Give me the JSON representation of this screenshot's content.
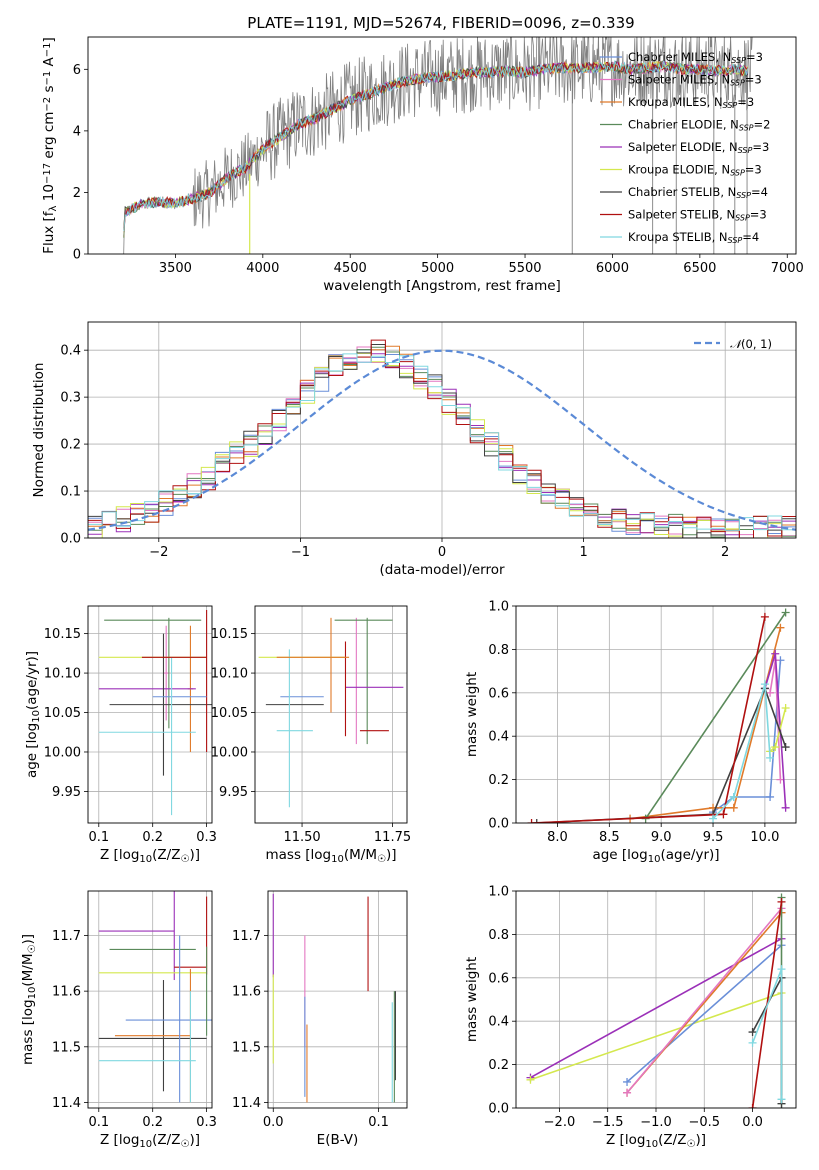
{
  "title": "PLATE=1191, MJD=52674, FIBERID=0096, z=0.339",
  "colors": {
    "Chabrier MILES": "#6a8fd8",
    "Salpeter MILES": "#e377c2",
    "Kroupa MILES": "#e07a2a",
    "Chabrier ELODIE": "#5a8a5a",
    "Salpeter ELODIE": "#9b30b8",
    "Kroupa ELODIE": "#d4e84e",
    "Chabrier STELIB": "#404040",
    "Salpeter STELIB": "#b01010",
    "Kroupa STELIB": "#80d8e0",
    "data": "#808080",
    "gauss": "#5b8ad6"
  },
  "legend_main": [
    "Chabrier MILES, N_SSP=3",
    "Salpeter MILES, N_SSP=3",
    "Kroupa MILES, N_SSP=3",
    "Chabrier ELODIE, N_SSP=2",
    "Salpeter ELODIE, N_SSP=3",
    "Kroupa ELODIE, N_SSP=3",
    "Chabrier STELIB, N_SSP=4",
    "Salpeter STELIB, N_SSP=3",
    "Kroupa STELIB, N_SSP=4"
  ],
  "chart_data": [
    {
      "id": "spectrum",
      "type": "line",
      "title": "PLATE=1191, MJD=52674, FIBERID=0096, z=0.339",
      "xlabel": "wavelength [Angstrom, rest frame]",
      "ylabel": "Flux [f_λ 10^-17 erg cm^-2 s^-1 A^-1]",
      "xlim": [
        3000,
        7050
      ],
      "ylim": [
        0,
        7.05
      ],
      "xticks": [
        3500,
        4000,
        4500,
        5000,
        5500,
        6000,
        6500,
        7000
      ],
      "yticks": [
        0,
        2,
        4,
        6
      ],
      "model_continuum": [
        [
          3200,
          0
        ],
        [
          3210,
          1.35
        ],
        [
          3300,
          1.6
        ],
        [
          3400,
          1.7
        ],
        [
          3500,
          1.65
        ],
        [
          3600,
          1.8
        ],
        [
          3700,
          2.0
        ],
        [
          3800,
          2.5
        ],
        [
          3900,
          2.8
        ],
        [
          3950,
          3.1
        ],
        [
          4000,
          3.4
        ],
        [
          4100,
          3.8
        ],
        [
          4200,
          4.2
        ],
        [
          4300,
          4.4
        ],
        [
          4400,
          4.7
        ],
        [
          4500,
          5.0
        ],
        [
          4600,
          5.2
        ],
        [
          4700,
          5.4
        ],
        [
          4800,
          5.6
        ],
        [
          4900,
          5.7
        ],
        [
          5000,
          5.75
        ],
        [
          5100,
          5.8
        ],
        [
          5200,
          5.9
        ],
        [
          5300,
          5.9
        ],
        [
          5400,
          5.95
        ],
        [
          5500,
          5.9
        ],
        [
          5600,
          6.0
        ],
        [
          5700,
          6.05
        ],
        [
          5800,
          6.05
        ],
        [
          5900,
          6.05
        ],
        [
          6000,
          6.1
        ],
        [
          6100,
          6.0
        ],
        [
          6200,
          6.05
        ],
        [
          6300,
          6.1
        ],
        [
          6400,
          6.0
        ],
        [
          6500,
          6.0
        ],
        [
          6600,
          5.95
        ],
        [
          6700,
          6.0
        ],
        [
          6800,
          5.9
        ]
      ],
      "grid": false,
      "legend": "top-right"
    },
    {
      "id": "residuals",
      "type": "line",
      "xlabel": "(data-model)/error",
      "ylabel": "Normed distribution",
      "xlim": [
        -2.5,
        2.5
      ],
      "ylim": [
        0,
        0.46
      ],
      "xticks": [
        -2,
        -1,
        0,
        1,
        2
      ],
      "yticks": [
        0.0,
        0.1,
        0.2,
        0.3,
        0.4
      ],
      "bin_width": 0.1,
      "bin_start": -2.5,
      "hist_envelope": [
        0.025,
        0.028,
        0.03,
        0.035,
        0.04,
        0.045,
        0.05,
        0.055,
        0.06,
        0.068,
        0.075,
        0.085,
        0.095,
        0.1,
        0.11,
        0.12,
        0.13,
        0.14,
        0.155,
        0.165,
        0.18,
        0.19,
        0.2,
        0.21,
        0.22,
        0.235,
        0.25,
        0.27,
        0.285,
        0.3,
        0.31,
        0.325,
        0.34,
        0.355,
        0.365,
        0.375,
        0.38,
        0.385,
        0.39,
        0.392,
        0.395,
        0.39,
        0.385,
        0.375,
        0.365,
        0.355,
        0.345,
        0.33,
        0.32,
        0.305,
        0.29,
        0.275,
        0.26,
        0.245,
        0.23,
        0.215,
        0.2,
        0.185,
        0.17,
        0.155,
        0.14,
        0.13,
        0.12,
        0.11,
        0.1,
        0.09,
        0.08,
        0.072,
        0.065,
        0.058,
        0.052,
        0.047,
        0.043,
        0.04,
        0.037,
        0.035,
        0.032,
        0.03,
        0.028,
        0.026,
        0.025,
        0.024,
        0.023,
        0.022,
        0.021,
        0.02,
        0.02,
        0.02,
        0.02,
        0.02,
        0.02,
        0.02,
        0.02,
        0.02,
        0.02,
        0.02,
        0.02,
        0.02,
        0.02,
        0.02
      ],
      "gaussian_legend": "N(0,1)",
      "grid": true,
      "legend": "top-right"
    },
    {
      "id": "age_vs_Z",
      "type": "scatter",
      "xlabel": "Z [log10(Z/Z☉)]",
      "ylabel": "age [log10(age/yr)]",
      "xlim": [
        0.08,
        0.31
      ],
      "ylim": [
        9.91,
        10.185
      ],
      "xticks": [
        0.1,
        0.2,
        0.3
      ],
      "yticks": [
        9.95,
        10.0,
        10.05,
        10.1,
        10.15
      ],
      "points": [
        {
          "s": "Salpeter MILES",
          "x": 0.225,
          "y": 10.1,
          "xerr": 0.005,
          "yerr": 0.06
        },
        {
          "s": "Kroupa MILES",
          "x": 0.27,
          "y": 10.08,
          "xerr": 0.005,
          "yerr": 0.08
        },
        {
          "s": "Chabrier ELODIE",
          "x": 0.23,
          "y": 10.1,
          "xerr": 0.0,
          "yerr": 0.07
        },
        {
          "s": "Salpeter ELODIE",
          "x": 0.19,
          "y": 10.08,
          "xerr": 0.09,
          "yerr": 0.0
        },
        {
          "s": "Kroupa ELODIE",
          "x": 0.2,
          "y": 10.12,
          "xerr": 0.1,
          "yerr": 0.0
        },
        {
          "s": "Chabrier STELIB",
          "x": 0.22,
          "y": 10.06,
          "xerr": 0.1,
          "yerr": 0.09
        },
        {
          "s": "Salpeter STELIB",
          "x": 0.3,
          "y": 10.09,
          "xerr": 0.0,
          "yerr": 0.09
        },
        {
          "s": "Kroupa STELIB",
          "x": 0.19,
          "y": 10.025,
          "xerr": 0.09,
          "yerr": 0.0
        },
        {
          "s": "Chabrier MILES",
          "x": 0.25,
          "y": 10.07,
          "xerr": 0.05,
          "yerr": 0.0
        },
        {
          "s": "Chabrier ELODIE",
          "x": 0.2,
          "y": 10.167,
          "xerr": 0.09,
          "yerr": 0.0
        },
        {
          "s": "Kroupa STELIB",
          "x": 0.235,
          "y": 10.02,
          "xerr": 0.0,
          "yerr": 0.1
        },
        {
          "s": "Salpeter STELIB",
          "x": 0.24,
          "y": 10.12,
          "xerr": 0.06,
          "yerr": 0.0
        }
      ]
    },
    {
      "id": "age_vs_mass",
      "type": "scatter",
      "xlabel": "mass [log10(M/M☉)]",
      "ylabel": "",
      "xlim": [
        11.37,
        11.79
      ],
      "ylim": [
        9.91,
        10.185
      ],
      "xticks": [
        11.5,
        11.75
      ],
      "yticks": [
        9.95,
        10.0,
        10.05,
        10.1,
        10.15
      ],
      "points": [
        {
          "s": "Chabrier MILES",
          "x": 11.5,
          "y": 10.07,
          "xerr": 0.06,
          "yerr": 0.0
        },
        {
          "s": "Salpeter MILES",
          "x": 11.65,
          "y": 10.09,
          "xerr": 0.0,
          "yerr": 0.08
        },
        {
          "s": "Kroupa MILES",
          "x": 11.58,
          "y": 10.11,
          "xerr": 0.0,
          "yerr": 0.06
        },
        {
          "s": "Chabrier ELODIE",
          "x": 11.67,
          "y": 10.167,
          "xerr": 0.08,
          "yerr": 0.0
        },
        {
          "s": "Chabrier ELODIE",
          "x": 11.68,
          "y": 10.09,
          "xerr": 0.0,
          "yerr": 0.08
        },
        {
          "s": "Salpeter ELODIE",
          "x": 11.7,
          "y": 10.082,
          "xerr": 0.08,
          "yerr": 0.0
        },
        {
          "s": "Kroupa ELODIE",
          "x": 11.5,
          "y": 10.12,
          "xerr": 0.12,
          "yerr": 0.0
        },
        {
          "s": "Chabrier STELIB",
          "x": 11.48,
          "y": 10.06,
          "xerr": 0.08,
          "yerr": 0.0
        },
        {
          "s": "Salpeter STELIB",
          "x": 11.7,
          "y": 10.027,
          "xerr": 0.04,
          "yerr": 0.0
        },
        {
          "s": "Salpeter STELIB",
          "x": 11.62,
          "y": 10.08,
          "xerr": 0.0,
          "yerr": 0.06
        },
        {
          "s": "Kroupa STELIB",
          "x": 11.48,
          "y": 10.027,
          "xerr": 0.05,
          "yerr": 0.0
        },
        {
          "s": "Kroupa STELIB",
          "x": 11.465,
          "y": 10.03,
          "xerr": 0.0,
          "yerr": 0.1
        },
        {
          "s": "Kroupa MILES",
          "x": 11.53,
          "y": 10.12,
          "xerr": 0.1,
          "yerr": 0.0
        }
      ]
    },
    {
      "id": "weight_vs_age",
      "type": "line",
      "xlabel": "age [log10(age/yr)]",
      "ylabel": "mass weight",
      "xlim": [
        7.6,
        10.3
      ],
      "ylim": [
        0,
        1.0
      ],
      "xticks": [
        8.0,
        8.5,
        9.0,
        9.5,
        10.0
      ],
      "yticks": [
        0.0,
        0.2,
        0.4,
        0.6,
        0.8,
        1.0
      ],
      "series": [
        {
          "s": "Chabrier MILES",
          "pts": [
            [
              9.5,
              0.05
            ],
            [
              9.7,
              0.12
            ],
            [
              10.05,
              0.12
            ],
            [
              10.15,
              0.75
            ]
          ]
        },
        {
          "s": "Salpeter MILES",
          "pts": [
            [
              10.05,
              0.6
            ],
            [
              10.1,
              0.75
            ],
            [
              10.15,
              0.2
            ]
          ]
        },
        {
          "s": "Kroupa MILES",
          "pts": [
            [
              8.7,
              0.02
            ],
            [
              9.5,
              0.07
            ],
            [
              9.7,
              0.07
            ],
            [
              10.15,
              0.9
            ]
          ]
        },
        {
          "s": "Chabrier ELODIE",
          "pts": [
            [
              8.85,
              0.02
            ],
            [
              10.2,
              0.97
            ]
          ]
        },
        {
          "s": "Salpeter ELODIE",
          "pts": [
            [
              10.0,
              0.62
            ],
            [
              10.1,
              0.78
            ],
            [
              10.2,
              0.07
            ]
          ]
        },
        {
          "s": "Kroupa ELODIE",
          "pts": [
            [
              10.05,
              0.33
            ],
            [
              10.1,
              0.35
            ],
            [
              10.2,
              0.53
            ]
          ]
        },
        {
          "s": "Chabrier STELIB",
          "pts": [
            [
              7.8,
              0.0
            ],
            [
              9.5,
              0.04
            ],
            [
              10.0,
              0.62
            ],
            [
              10.2,
              0.35
            ]
          ]
        },
        {
          "s": "Salpeter STELIB",
          "pts": [
            [
              7.75,
              0.0
            ],
            [
              9.6,
              0.04
            ],
            [
              10.0,
              0.95
            ]
          ]
        },
        {
          "s": "Kroupa STELIB",
          "pts": [
            [
              9.5,
              0.02
            ],
            [
              9.7,
              0.12
            ],
            [
              10.0,
              0.64
            ],
            [
              10.05,
              0.3
            ]
          ]
        }
      ]
    },
    {
      "id": "mass_vs_Z",
      "type": "scatter",
      "xlabel": "Z [log10(Z/Z☉)]",
      "ylabel": "mass [log10(M/M☉)]",
      "xlim": [
        0.08,
        0.31
      ],
      "ylim": [
        11.39,
        11.78
      ],
      "xticks": [
        0.1,
        0.2,
        0.3
      ],
      "yticks": [
        11.4,
        11.5,
        11.6,
        11.7
      ],
      "points": [
        {
          "s": "Salpeter ELODIE",
          "x": 0.17,
          "y": 11.708,
          "xerr": 0.07,
          "yerr": 0.0
        },
        {
          "s": "Salpeter ELODIE",
          "x": 0.24,
          "y": 11.7,
          "xerr": 0.0,
          "yerr": 0.08
        },
        {
          "s": "Chabrier ELODIE",
          "x": 0.2,
          "y": 11.675,
          "xerr": 0.08,
          "yerr": 0.0
        },
        {
          "s": "Kroupa ELODIE",
          "x": 0.2,
          "y": 11.633,
          "xerr": 0.1,
          "yerr": 0.0
        },
        {
          "s": "Salpeter STELIB",
          "x": 0.27,
          "y": 11.643,
          "xerr": 0.03,
          "yerr": 0.0
        },
        {
          "s": "Salpeter STELIB",
          "x": 0.3,
          "y": 11.7,
          "xerr": 0.0,
          "yerr": 0.07
        },
        {
          "s": "Chabrier STELIB",
          "x": 0.22,
          "y": 11.52,
          "xerr": 0.0,
          "yerr": 0.1
        },
        {
          "s": "Chabrier STELIB",
          "x": 0.2,
          "y": 11.515,
          "xerr": 0.1,
          "yerr": 0.0
        },
        {
          "s": "Kroupa MILES",
          "x": 0.2,
          "y": 11.52,
          "xerr": 0.07,
          "yerr": 0.0
        },
        {
          "s": "Kroupa MILES",
          "x": 0.27,
          "y": 11.52,
          "xerr": 0.0,
          "yerr": 0.12
        },
        {
          "s": "Chabrier MILES",
          "x": 0.23,
          "y": 11.548,
          "xerr": 0.08,
          "yerr": 0.0
        },
        {
          "s": "Chabrier MILES",
          "x": 0.25,
          "y": 11.55,
          "xerr": 0.0,
          "yerr": 0.15
        },
        {
          "s": "Kroupa STELIB",
          "x": 0.19,
          "y": 11.475,
          "xerr": 0.09,
          "yerr": 0.0
        },
        {
          "s": "Kroupa STELIB",
          "x": 0.27,
          "y": 11.5,
          "xerr": 0.0,
          "yerr": 0.1
        },
        {
          "s": "Chabrier ELODIE",
          "x": 0.3,
          "y": 11.6,
          "xerr": 0.0,
          "yerr": 0.08
        }
      ]
    },
    {
      "id": "mass_vs_ebv",
      "type": "scatter",
      "xlabel": "E(B-V)",
      "ylabel": "",
      "xlim": [
        -0.005,
        0.127
      ],
      "ylim": [
        11.39,
        11.78
      ],
      "xticks": [
        0.0,
        0.1
      ],
      "yticks": [
        11.4,
        11.5,
        11.6,
        11.7
      ],
      "points": [
        {
          "s": "Salpeter ELODIE",
          "x": 0.0,
          "y": 11.7,
          "xerr": 0.0,
          "yerr": 0.075
        },
        {
          "s": "Kroupa ELODIE",
          "x": 0.0,
          "y": 11.55,
          "xerr": 0.0,
          "yerr": 0.08
        },
        {
          "s": "Salpeter MILES",
          "x": 0.03,
          "y": 11.6,
          "xerr": 0.0,
          "yerr": 0.1
        },
        {
          "s": "Chabrier MILES",
          "x": 0.03,
          "y": 11.5,
          "xerr": 0.0,
          "yerr": 0.09
        },
        {
          "s": "Kroupa MILES",
          "x": 0.032,
          "y": 11.47,
          "xerr": 0.0,
          "yerr": 0.07
        },
        {
          "s": "Salpeter STELIB",
          "x": 0.09,
          "y": 11.685,
          "xerr": 0.0,
          "yerr": 0.085
        },
        {
          "s": "Chabrier ELODIE",
          "x": 0.115,
          "y": 11.5,
          "xerr": 0.0,
          "yerr": 0.1
        },
        {
          "s": "Kroupa STELIB",
          "x": 0.113,
          "y": 11.49,
          "xerr": 0.0,
          "yerr": 0.09
        },
        {
          "s": "Chabrier STELIB",
          "x": 0.116,
          "y": 11.52,
          "xerr": 0.0,
          "yerr": 0.08
        }
      ]
    },
    {
      "id": "weight_vs_Z",
      "type": "line",
      "xlabel": "Z [log10(Z/Z☉)]",
      "ylabel": "mass weight",
      "xlim": [
        -2.45,
        0.45
      ],
      "ylim": [
        0,
        1.0
      ],
      "xticks": [
        -2.0,
        -1.5,
        -1.0,
        -0.5,
        0.0
      ],
      "yticks": [
        0.0,
        0.2,
        0.4,
        0.6,
        0.8,
        1.0
      ],
      "series": [
        {
          "s": "Salpeter ELODIE",
          "pts": [
            [
              -2.3,
              0.14
            ],
            [
              0.3,
              0.78
            ]
          ]
        },
        {
          "s": "Kroupa ELODIE",
          "pts": [
            [
              -2.3,
              0.13
            ],
            [
              0.3,
              0.53
            ]
          ]
        },
        {
          "s": "Chabrier MILES",
          "pts": [
            [
              -1.3,
              0.12
            ],
            [
              0.3,
              0.75
            ]
          ]
        },
        {
          "s": "Kroupa MILES",
          "pts": [
            [
              -1.3,
              0.07
            ],
            [
              0.3,
              0.9
            ]
          ]
        },
        {
          "s": "Salpeter MILES",
          "pts": [
            [
              -1.3,
              0.07
            ],
            [
              0.3,
              0.92
            ]
          ]
        },
        {
          "s": "Chabrier ELODIE",
          "pts": [
            [
              0.3,
              0.02
            ],
            [
              0.3,
              0.97
            ]
          ]
        },
        {
          "s": "Chabrier STELIB",
          "pts": [
            [
              0.0,
              0.35
            ],
            [
              0.3,
              0.6
            ],
            [
              0.3,
              0.02
            ]
          ]
        },
        {
          "s": "Salpeter STELIB",
          "pts": [
            [
              0.0,
              0.0
            ],
            [
              0.3,
              0.95
            ]
          ]
        },
        {
          "s": "Kroupa STELIB",
          "pts": [
            [
              0.0,
              0.3
            ],
            [
              0.3,
              0.64
            ],
            [
              0.3,
              0.04
            ]
          ]
        }
      ]
    }
  ]
}
